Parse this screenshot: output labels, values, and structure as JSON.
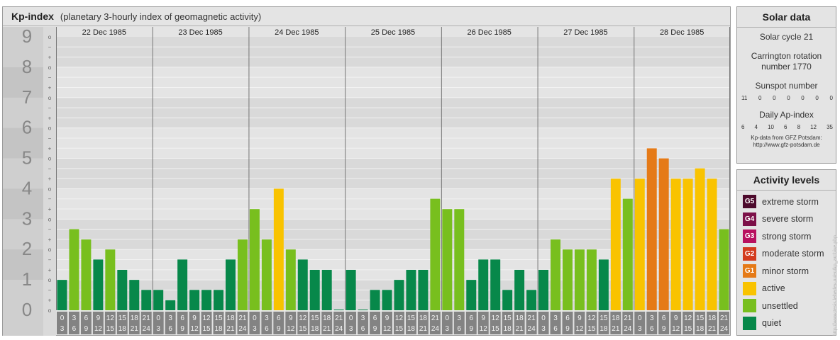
{
  "header": {
    "title": "Kp-index",
    "subtitle": "(planetary 3-hourly index of geomagnetic activity)"
  },
  "chart_data": {
    "type": "bar",
    "ylim": [
      0,
      9
    ],
    "y_ticks": [
      "0",
      "1",
      "2",
      "3",
      "4",
      "5",
      "6",
      "7",
      "8",
      "9"
    ],
    "minor_ticks": [
      "o",
      "+",
      "−"
    ],
    "days": [
      "22 Dec 1985",
      "23 Dec 1985",
      "24 Dec 1985",
      "25 Dec 1985",
      "26 Dec 1985",
      "27 Dec 1985",
      "28 Dec 1985"
    ],
    "interval_top": [
      "0",
      "3",
      "6",
      "9",
      "12",
      "15",
      "18",
      "21"
    ],
    "interval_bottom": [
      "3",
      "6",
      "9",
      "12",
      "15",
      "18",
      "21",
      "24"
    ],
    "values": [
      1.0,
      2.67,
      2.33,
      1.67,
      2.0,
      1.33,
      1.0,
      0.67,
      0.67,
      0.33,
      1.67,
      0.67,
      0.67,
      0.67,
      1.67,
      2.33,
      3.33,
      2.33,
      4.0,
      2.0,
      1.67,
      1.33,
      1.33,
      0.0,
      1.33,
      0.0,
      0.67,
      0.67,
      1.0,
      1.33,
      1.33,
      3.67,
      3.33,
      3.33,
      1.0,
      1.67,
      1.67,
      0.67,
      1.33,
      0.67,
      1.33,
      2.33,
      2.0,
      2.0,
      2.0,
      1.67,
      4.33,
      3.67,
      4.33,
      5.33,
      5.0,
      4.33,
      4.33,
      4.67,
      4.33,
      2.67
    ]
  },
  "colors": {
    "quiet": "#07884a",
    "unsettled": "#78bf1e",
    "active": "#f9c300",
    "minor_storm": "#e57a17",
    "moderate_storm": "#d33b1e",
    "strong_storm": "#b8105f",
    "severe_storm": "#7c1048",
    "extreme_storm": "#4d0a2c"
  },
  "solar": {
    "title": "Solar data",
    "cycle": "Solar cycle 21",
    "carrington_1": "Carrington rotation",
    "carrington_2": "number 1770",
    "sunspot_label": "Sunspot number",
    "sunspot_values": [
      "11",
      "0",
      "0",
      "0",
      "0",
      "0",
      "0"
    ],
    "ap_label": "Daily Ap-index",
    "ap_values": [
      "6",
      "4",
      "10",
      "6",
      "8",
      "12",
      "35"
    ],
    "source_1": "Kp-data from GFZ Potsdam:",
    "source_2": "http://www.gfz-potsdam.de"
  },
  "activity": {
    "title": "Activity levels",
    "levels": [
      {
        "code": "G5",
        "label": "extreme storm",
        "color": "#4d0a2c"
      },
      {
        "code": "G4",
        "label": "severe storm",
        "color": "#7c1048"
      },
      {
        "code": "G3",
        "label": "strong storm",
        "color": "#b8105f"
      },
      {
        "code": "G2",
        "label": "moderate storm",
        "color": "#d33b1e"
      },
      {
        "code": "G1",
        "label": "minor storm",
        "color": "#e57a17"
      },
      {
        "code": "",
        "label": "active",
        "color": "#f9c300"
      },
      {
        "code": "",
        "label": "unsettled",
        "color": "#78bf1e"
      },
      {
        "code": "",
        "label": "quiet",
        "color": "#07884a"
      }
    ]
  },
  "credit": "http://www.tesis.lebedev.ru/en/kp_archive.php"
}
